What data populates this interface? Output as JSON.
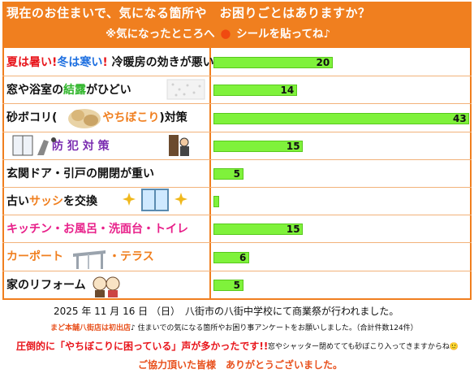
{
  "header": {
    "title": "現在のお住まいで、気になる箇所や　お困りごとはありますか？",
    "subtitle_prefix": "※気になったところへ",
    "subtitle_suffix": "シールを貼ってね♪",
    "bg_color": "#f07f1f"
  },
  "rows": [
    {
      "parts": [
        {
          "t": "夏は暑い",
          "c": "red"
        },
        {
          "t": "!",
          "c": "red"
        },
        {
          "t": "冬は寒い",
          "c": "blue"
        },
        {
          "t": "!",
          "c": "red"
        },
        {
          "t": " 冷暖房の効きが悪い",
          "c": ""
        }
      ]
    },
    {
      "parts": [
        {
          "t": "窓や浴室の",
          "c": ""
        },
        {
          "t": "結露",
          "c": "green"
        },
        {
          "t": "がひどい",
          "c": ""
        }
      ]
    },
    {
      "parts": [
        {
          "t": "砂ボコリ(",
          "c": ""
        },
        {
          "t": "　　　　",
          "c": ""
        },
        {
          "t": "やちぼこり",
          "c": "orange"
        },
        {
          "t": ")対策",
          "c": ""
        }
      ]
    },
    {
      "parts": [
        {
          "t": "　　　　",
          "c": ""
        },
        {
          "t": "防 犯 対 策",
          "c": "purple"
        }
      ]
    },
    {
      "parts": [
        {
          "t": "玄関ドア・引戸の開閉が重い",
          "c": ""
        }
      ]
    },
    {
      "parts": [
        {
          "t": "古い",
          "c": ""
        },
        {
          "t": "サッシ",
          "c": "orange"
        },
        {
          "t": "を交換",
          "c": ""
        }
      ]
    },
    {
      "parts": [
        {
          "t": "キッチン・お風呂・洗面台・トイレ",
          "c": "pink"
        }
      ]
    },
    {
      "parts": [
        {
          "t": "カーポート",
          "c": "orange"
        },
        {
          "t": "　　　　",
          "c": ""
        },
        {
          "t": "・テラス",
          "c": "orange"
        }
      ]
    },
    {
      "parts": [
        {
          "t": "家のリフォーム",
          "c": ""
        }
      ]
    }
  ],
  "chart_data": {
    "type": "bar",
    "orientation": "horizontal",
    "categories": [
      "夏は暑い!冬は寒い! 冷暖房の効きが悪い",
      "窓や浴室の結露がひどい",
      "砂ボコリ(やちぼこり)対策",
      "防犯対策",
      "玄関ドア・引戸の開閉が重い",
      "古いサッシを交換",
      "キッチン・お風呂・洗面台・トイレ",
      "カーポート・テラス",
      "家のリフォーム"
    ],
    "values": [
      20,
      14,
      43,
      15,
      5,
      1,
      15,
      6,
      5
    ],
    "value_labels": [
      "20",
      "14",
      "43",
      "15",
      "5",
      "",
      "15",
      "6",
      "5"
    ],
    "xlim": [
      0,
      43
    ],
    "bar_color": "#7ff23b",
    "grid": false
  },
  "footer": {
    "date_line": "2025 年 11 月 16 日 （日）　八街市の八街中学校にて商業祭が行われました。",
    "note_prefix": "まど本舗八街店は初出店",
    "note_suffix": "♪ 住まいでの気になる箇所やお困り事アンケートをお願いしました。（合計件数124件）",
    "highlight": "圧倒的に「やちぼこりに困っている」声が多かったです!!",
    "extra": "窓やシャッター閉めてても砂ぼこり入ってきますからね🙂",
    "thanks": "ご協力頂いた皆様　ありがとうございました。"
  }
}
